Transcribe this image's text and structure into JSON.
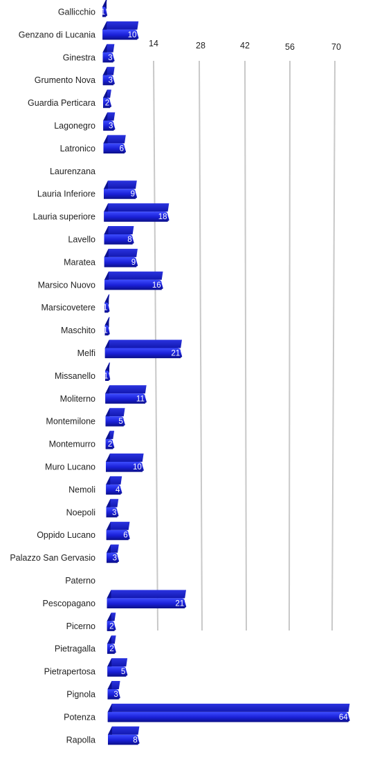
{
  "chart_data": {
    "type": "bar",
    "orientation": "horizontal",
    "style": "3d",
    "title": "",
    "xlabel": "",
    "ylabel": "",
    "xlim": [
      0,
      70
    ],
    "ticks": [
      "14",
      "28",
      "42",
      "56",
      "70"
    ],
    "grid": true,
    "legend": "none",
    "bar_color": "#1a20d8",
    "bar_color_light": "#3d4cff",
    "bar_color_dark": "#0c1190",
    "gridline_color": "#c8c8c8",
    "categories": [
      "Gallicchio",
      "Genzano di Lucania",
      "Ginestra",
      "Grumento Nova",
      "Guardia Perticara",
      "Lagonegro",
      "Latronico",
      "Laurenzana",
      "Lauria Inferiore",
      "Lauria superiore",
      "Lavello",
      "Maratea",
      "Marsico Nuovo",
      "Marsicovetere",
      "Maschito",
      "Melfi",
      "Missanello",
      "Moliterno",
      "Montemilone",
      "Montemurro",
      "Muro Lucano",
      "Nemoli",
      "Noepoli",
      "Oppido Lucano",
      "Palazzo San Gervasio",
      "Paterno",
      "Pescopagano",
      "Picerno",
      "Pietragalla",
      "Pietrapertosa",
      "Pignola",
      "Potenza",
      "Rapolla"
    ],
    "values": [
      1,
      10,
      3,
      3,
      2,
      3,
      6,
      null,
      9,
      18,
      8,
      9,
      16,
      1,
      1,
      21,
      1,
      11,
      5,
      2,
      10,
      4,
      3,
      6,
      3,
      null,
      21,
      2,
      2,
      5,
      3,
      64,
      8
    ],
    "value_labels": [
      "1",
      "10",
      "3",
      "3",
      "2",
      "3",
      "6",
      "",
      "9",
      "18",
      "8",
      "9",
      "16",
      "1",
      "1",
      "21",
      "1",
      "11",
      "5",
      "2",
      "10",
      "4",
      "3",
      "6",
      "3",
      "",
      "21",
      "2",
      "2",
      "5",
      "3",
      "64",
      "8"
    ]
  }
}
